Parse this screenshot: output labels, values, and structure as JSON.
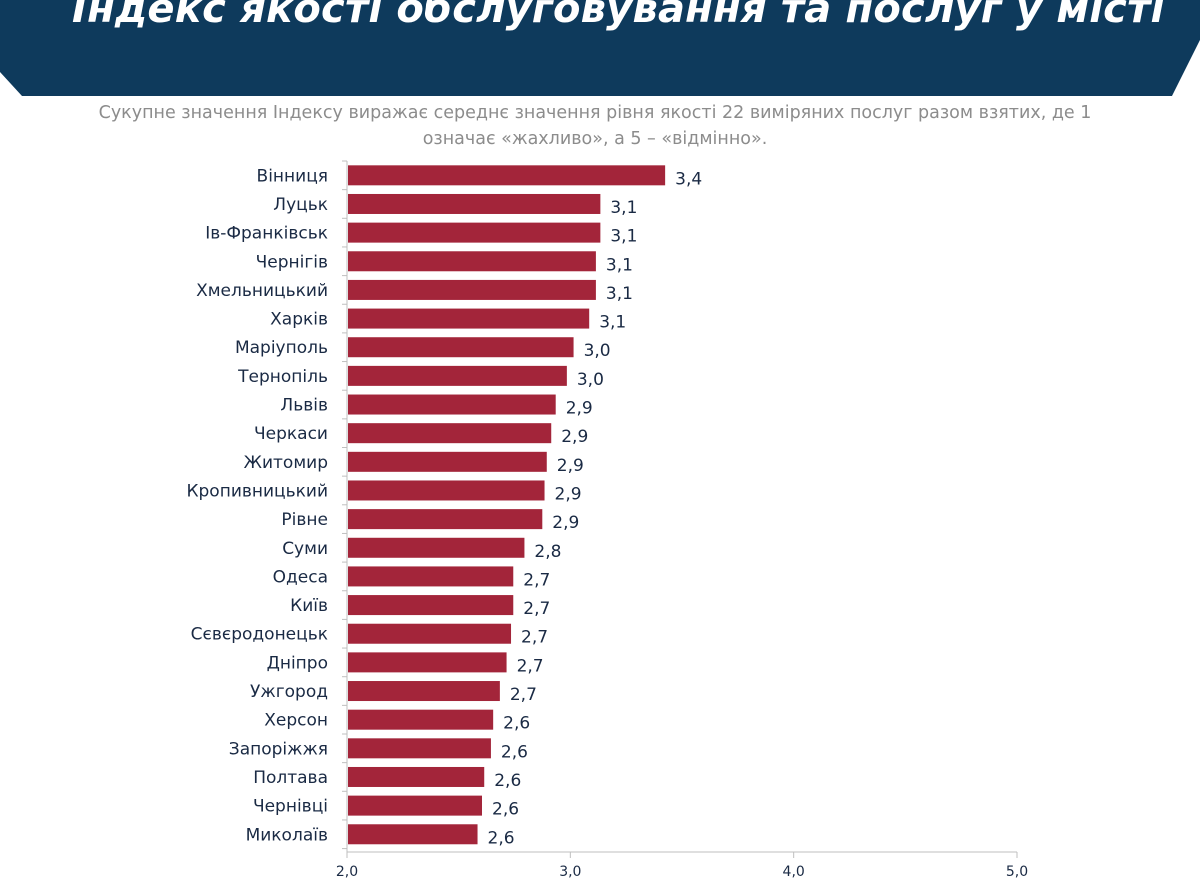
{
  "header": {
    "title": "Індекс якості обслуговування та послуг у місті",
    "bg_color": "#0e3a5c"
  },
  "subtitle": {
    "line1": "Сукупне значення Індексу виражає середнє значення рівня якості 22 виміряних послуг разом взятих, де 1",
    "line2": "означає «жахливо», а 5 – «відмінно»."
  },
  "chart_data": {
    "type": "bar",
    "orientation": "horizontal",
    "categories": [
      "Вінниця",
      "Луцьк",
      "Ів-Франківськ",
      "Чернігів",
      "Хмельницький",
      "Харків",
      "Маріуполь",
      "Тернопіль",
      "Львів",
      "Черкаси",
      "Житомир",
      "Кропивницький",
      "Рівне",
      "Суми",
      "Одеса",
      "Київ",
      "Сєвєродонецьк",
      "Дніпро",
      "Ужгород",
      "Херсон",
      "Запоріжжя",
      "Полтава",
      "Чернівці",
      "Миколаїв"
    ],
    "values": [
      3.42,
      3.13,
      3.13,
      3.11,
      3.11,
      3.08,
      3.01,
      2.98,
      2.93,
      2.91,
      2.89,
      2.88,
      2.87,
      2.79,
      2.74,
      2.74,
      2.73,
      2.71,
      2.68,
      2.65,
      2.64,
      2.61,
      2.6,
      2.58
    ],
    "data_labels": [
      "3,4",
      "3,1",
      "3,1",
      "3,1",
      "3,1",
      "3,1",
      "3,0",
      "3,0",
      "2,9",
      "2,9",
      "2,9",
      "2,9",
      "2,9",
      "2,8",
      "2,7",
      "2,7",
      "2,7",
      "2,7",
      "2,7",
      "2,6",
      "2,6",
      "2,6",
      "2,6",
      "2,6"
    ],
    "xlim": [
      2.0,
      5.0
    ],
    "x_ticks": [
      2.0,
      3.0,
      4.0,
      5.0
    ],
    "x_tick_labels": [
      "2,0",
      "3,0",
      "4,0",
      "5,0"
    ],
    "bar_color": "#a3253a",
    "axis_color": "#bfbfbf",
    "grid": false
  }
}
